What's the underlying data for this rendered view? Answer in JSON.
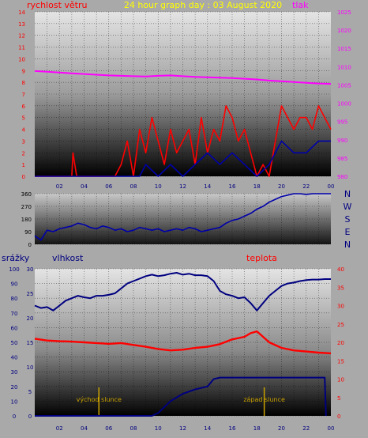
{
  "colors": {
    "background": "#a9a9a9",
    "wind": "#ff0000",
    "gust_avg": "#0000aa",
    "pressure": "#ff00ff",
    "humidity": "#000080",
    "temperature": "#ff0000",
    "rain": "#000080",
    "title": "#ffff00",
    "markers": "#c8a000"
  },
  "chart_data": [
    {
      "type": "line",
      "title": "24 hour graph day : 03 August 2020",
      "left_label": "rychlost větru",
      "right_label": "tlak",
      "x_ticks": [
        "02",
        "04",
        "06",
        "08",
        "10",
        "12",
        "14",
        "16",
        "18",
        "20",
        "22",
        "00"
      ],
      "xlim": [
        0,
        24
      ],
      "y_left": {
        "ticks": [
          0,
          1,
          2,
          3,
          4,
          5,
          6,
          7,
          8,
          9,
          10,
          11,
          12,
          13,
          14
        ],
        "ylim": [
          0,
          14
        ]
      },
      "y_right": {
        "ticks": [
          980,
          985,
          990,
          995,
          1000,
          1005,
          1010,
          1015,
          1020,
          1025
        ],
        "ylim": [
          980,
          1025
        ]
      },
      "series": [
        {
          "key": "pressure",
          "axis": "right",
          "x": [
            0,
            1,
            2,
            3,
            4,
            5,
            6,
            7,
            8,
            9,
            10,
            11,
            12,
            13,
            14,
            15,
            16,
            17,
            18,
            19,
            20,
            21,
            22,
            23,
            24
          ],
          "y": [
            1008.8,
            1008.6,
            1008.4,
            1008.2,
            1008.0,
            1007.8,
            1007.6,
            1007.5,
            1007.4,
            1007.3,
            1007.5,
            1007.6,
            1007.4,
            1007.2,
            1007.1,
            1007.0,
            1006.9,
            1006.7,
            1006.5,
            1006.2,
            1006.0,
            1005.8,
            1005.6,
            1005.4,
            1005.3
          ]
        },
        {
          "key": "wind_gust",
          "axis": "left",
          "x": [
            0,
            3.0,
            3.1,
            3.4,
            3.5,
            6.5,
            7.0,
            7.5,
            8.0,
            8.5,
            9.0,
            9.5,
            10.0,
            10.5,
            11.0,
            11.5,
            12.0,
            12.5,
            13.0,
            13.5,
            14.0,
            14.5,
            15.0,
            15.5,
            16.0,
            16.5,
            17.0,
            17.5,
            18.0,
            18.5,
            19.0,
            19.5,
            20.0,
            20.5,
            21.0,
            21.5,
            22.0,
            22.5,
            23.0,
            23.5,
            24
          ],
          "y": [
            0,
            0,
            2,
            0,
            0,
            0,
            1,
            3,
            0,
            4,
            2,
            5,
            3,
            1,
            4,
            2,
            3,
            4,
            1,
            5,
            2,
            4,
            3,
            6,
            5,
            3,
            4,
            2,
            0,
            1,
            0,
            3,
            6,
            5,
            4,
            5,
            5,
            4,
            6,
            5,
            4
          ]
        },
        {
          "key": "wind_avg",
          "axis": "left",
          "x": [
            0,
            8.5,
            9.0,
            10.0,
            11.0,
            12.0,
            13.0,
            14.0,
            15.0,
            16.0,
            17.0,
            18.0,
            19.0,
            20.0,
            21.0,
            22.0,
            23.0,
            24
          ],
          "y": [
            0,
            0,
            1,
            0,
            1,
            0,
            1,
            2,
            1,
            2,
            1,
            0,
            1,
            3,
            2,
            2,
            3,
            3
          ]
        }
      ]
    },
    {
      "type": "line",
      "ylabels": [
        "N",
        "W",
        "S",
        "E",
        "N"
      ],
      "y_ticks": [
        0,
        90,
        180,
        270,
        360
      ],
      "ylim": [
        0,
        360
      ],
      "series": [
        {
          "key": "direction",
          "x": [
            0,
            0.5,
            1.0,
            1.5,
            2.0,
            2.5,
            3.0,
            3.5,
            4.0,
            4.5,
            5.0,
            5.5,
            6.0,
            6.5,
            7.0,
            7.5,
            8.0,
            8.5,
            9.0,
            9.5,
            10.0,
            10.5,
            11.0,
            11.5,
            12.0,
            12.5,
            13.0,
            13.5,
            14.0,
            14.5,
            15.0,
            15.5,
            16.0,
            16.5,
            17.0,
            17.5,
            18.0,
            18.5,
            19.0,
            19.5,
            20.0,
            20.5,
            21.0,
            21.5,
            22.0,
            22.5,
            23.0,
            23.5,
            24
          ],
          "y": [
            60,
            30,
            100,
            90,
            110,
            120,
            130,
            150,
            140,
            120,
            110,
            130,
            120,
            100,
            110,
            90,
            100,
            120,
            110,
            100,
            110,
            90,
            100,
            110,
            100,
            120,
            110,
            90,
            100,
            110,
            120,
            150,
            170,
            180,
            200,
            220,
            250,
            270,
            300,
            320,
            340,
            350,
            360,
            360,
            355,
            360,
            360,
            360,
            360
          ]
        }
      ]
    },
    {
      "type": "line",
      "left_label": "srážky",
      "mid_label": "vlhkost",
      "right_label": "teplota",
      "x_ticks": [
        "02",
        "04",
        "06",
        "08",
        "10",
        "12",
        "14",
        "16",
        "18",
        "20",
        "22",
        "00"
      ],
      "xlim": [
        0,
        24
      ],
      "y_rain": {
        "ticks": [
          0,
          10,
          20,
          30,
          40,
          50,
          60,
          70,
          80,
          90,
          100
        ],
        "ylim": [
          0,
          100
        ]
      },
      "y_humidity": {
        "ticks": [
          0,
          5,
          10,
          15,
          20,
          25,
          30
        ],
        "ylim": [
          0,
          30
        ]
      },
      "y_temp": {
        "ticks": [
          0,
          5,
          10,
          15,
          20,
          25,
          30,
          35,
          40
        ],
        "ylim": [
          0,
          40
        ]
      },
      "annotations": [
        "východ slunce",
        "západ slunce"
      ],
      "series": [
        {
          "key": "humidity",
          "axis": "humidity",
          "x": [
            0,
            0.5,
            1.0,
            1.5,
            2.0,
            2.5,
            3.0,
            3.5,
            4.0,
            4.5,
            5.0,
            5.5,
            6.0,
            6.5,
            7.0,
            7.5,
            8.0,
            8.5,
            9.0,
            9.5,
            10.0,
            10.5,
            11.0,
            11.5,
            12.0,
            12.5,
            13.0,
            13.5,
            14.0,
            14.5,
            15.0,
            15.5,
            16.0,
            16.5,
            17.0,
            17.5,
            18.0,
            18.5,
            19.0,
            19.5,
            20.0,
            20.5,
            21.0,
            21.5,
            22.0,
            22.5,
            23.0,
            23.5,
            24
          ],
          "y": [
            22.5,
            22.0,
            22.2,
            21.5,
            22.5,
            23.5,
            24.0,
            24.5,
            24.2,
            24.0,
            24.5,
            24.5,
            24.7,
            25.0,
            26.0,
            27.0,
            27.5,
            28.0,
            28.5,
            28.8,
            28.5,
            28.7,
            29.0,
            29.2,
            28.8,
            29.0,
            28.7,
            28.7,
            28.5,
            27.5,
            25.5,
            24.8,
            24.5,
            24.0,
            24.2,
            23.0,
            21.5,
            23.0,
            24.5,
            25.5,
            26.5,
            27.0,
            27.2,
            27.5,
            27.7,
            27.8,
            27.8,
            27.9,
            27.9
          ]
        },
        {
          "key": "temperature",
          "axis": "temp",
          "x": [
            0,
            1,
            2,
            3,
            4,
            5,
            6,
            7,
            8,
            9,
            10,
            11,
            12,
            13,
            14,
            15,
            16,
            17,
            17.5,
            18,
            18.5,
            19,
            20,
            21,
            22,
            23,
            24
          ],
          "y": [
            21.0,
            20.5,
            20.3,
            20.2,
            20.0,
            19.8,
            19.6,
            19.8,
            19.3,
            18.8,
            18.2,
            17.8,
            18.0,
            18.5,
            18.8,
            19.5,
            20.8,
            21.5,
            22.5,
            23.0,
            21.5,
            20.0,
            18.5,
            17.8,
            17.5,
            17.2,
            17.0
          ]
        },
        {
          "key": "rain",
          "axis": "rain",
          "x": [
            0,
            9.5,
            10.0,
            10.5,
            11.0,
            12.0,
            13.0,
            14.0,
            14.5,
            15.0,
            16.0,
            18.0,
            20.0,
            22.0,
            23.5,
            23.6
          ],
          "y": [
            0,
            0,
            2,
            6,
            10,
            15,
            18,
            20,
            25,
            26,
            26,
            26,
            26,
            26,
            26,
            0
          ]
        }
      ]
    }
  ]
}
